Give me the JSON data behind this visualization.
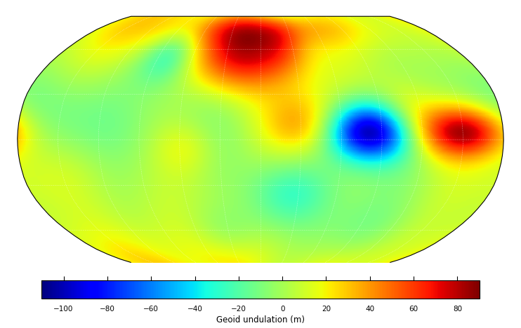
{
  "title": "",
  "colorbar_label": "Geoid undulation (m)",
  "colormap": "jet",
  "vmin": -110,
  "vmax": 90,
  "colorbar_ticks": [
    -100,
    -80,
    -60,
    -40,
    -20,
    0,
    20,
    40,
    60,
    80
  ],
  "background_color": "#ffffff",
  "grid_color": "white",
  "grid_linestyle": ":",
  "coastline_color": "black",
  "coastline_linewidth": 0.5,
  "figsize": [
    7.42,
    4.68
  ],
  "dpi": 100
}
